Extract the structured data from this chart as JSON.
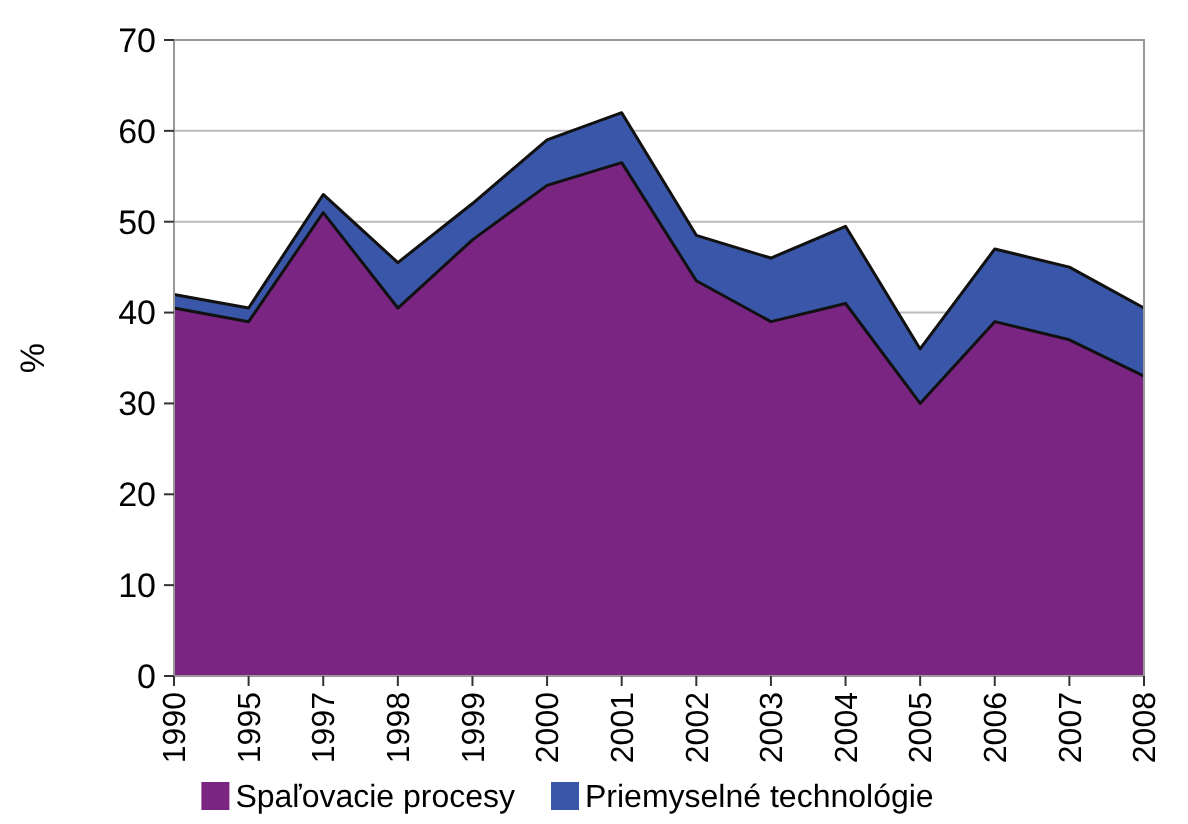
{
  "chart_data": {
    "type": "area",
    "stacked": true,
    "ylabel": "%",
    "categories": [
      "1990",
      "1995",
      "1997",
      "1998",
      "1999",
      "2000",
      "2001",
      "2002",
      "2003",
      "2004",
      "2005",
      "2006",
      "2007",
      "2008"
    ],
    "series": [
      {
        "name": "Spaľovacie procesy",
        "color": "#7b2582",
        "values": [
          40.5,
          39,
          51,
          40.5,
          48,
          54,
          56.5,
          43.5,
          39,
          41,
          30,
          39,
          37,
          33
        ]
      },
      {
        "name": "Priemyselné technológie",
        "color": "#3a56a8",
        "values": [
          1.5,
          1.5,
          2,
          5,
          4,
          5,
          5.5,
          5,
          7,
          8.5,
          6,
          8,
          8,
          7.5
        ]
      }
    ],
    "ylim": [
      0,
      70
    ],
    "yticks": [
      0,
      10,
      20,
      30,
      40,
      50,
      60,
      70
    ],
    "grid": "y",
    "legend": "bottom"
  }
}
